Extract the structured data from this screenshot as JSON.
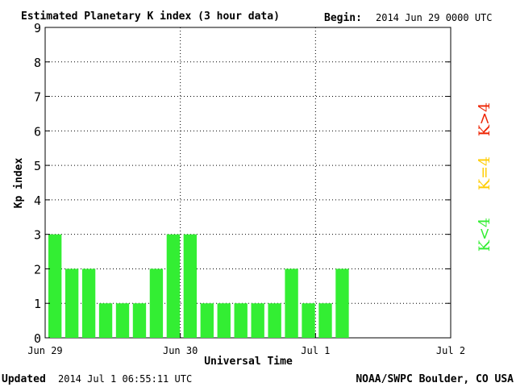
{
  "header": {
    "title": "Estimated Planetary K index (3 hour data)",
    "begin_label": "Begin:",
    "begin_value": "2014 Jun 29 0000 UTC"
  },
  "footer": {
    "updated_label": "Updated",
    "updated_value": "2014 Jul  1 06:55:11 UTC",
    "source": "NOAA/SWPC Boulder, CO USA"
  },
  "legend": {
    "items": [
      {
        "label": "K<4",
        "color": "#33ee33"
      },
      {
        "label": "K=4",
        "color": "#ffcc00"
      },
      {
        "label": "K>4",
        "color": "#ee2200"
      }
    ]
  },
  "chart_data": {
    "type": "bar",
    "xlabel": "Universal Time",
    "ylabel": "Kp index",
    "ylim": [
      0,
      9
    ],
    "yticks": [
      0,
      1,
      2,
      3,
      4,
      5,
      6,
      7,
      8,
      9
    ],
    "xlim_days": [
      0,
      3
    ],
    "xticks": [
      {
        "label": "Jun 29",
        "day": 0
      },
      {
        "label": "Jun 30",
        "day": 1
      },
      {
        "label": "Jul 1",
        "day": 2
      },
      {
        "label": "Jul 2",
        "day": 3
      }
    ],
    "grid": {
      "x": true,
      "y": true,
      "style": "dotted"
    },
    "bar_color": "#33ee33",
    "series": [
      {
        "values": [
          3,
          2,
          2,
          1,
          1,
          1,
          2,
          3,
          3,
          1,
          1,
          1,
          1,
          1,
          2,
          1,
          1,
          2
        ]
      }
    ]
  }
}
